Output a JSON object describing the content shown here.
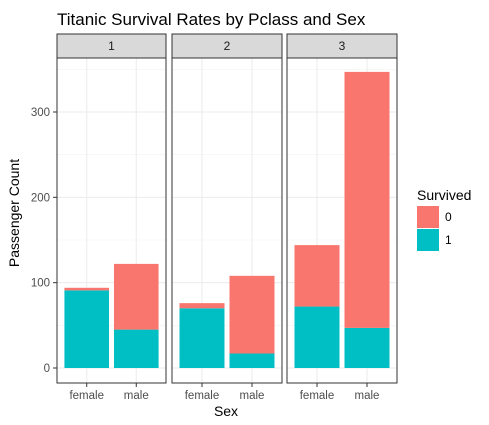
{
  "chart_data": {
    "type": "bar",
    "stacked": true,
    "title": "Titanic Survival Rates by Pclass and Sex",
    "xlabel": "Sex",
    "ylabel": "Passenger Count",
    "ylim": [
      0,
      360
    ],
    "yticks": [
      0,
      100,
      200,
      300
    ],
    "grid": true,
    "legend": {
      "title": "Survived",
      "position": "right",
      "entries": [
        "0",
        "1"
      ]
    },
    "colors": {
      "0": "#f8766d",
      "1": "#00bfc4"
    },
    "facets": [
      "1",
      "2",
      "3"
    ],
    "categories": [
      "female",
      "male"
    ],
    "series": [
      {
        "name": "0",
        "values": {
          "1": [
            3,
            77
          ],
          "2": [
            6,
            91
          ],
          "3": [
            72,
            300
          ]
        }
      },
      {
        "name": "1",
        "values": {
          "1": [
            91,
            45
          ],
          "2": [
            70,
            17
          ],
          "3": [
            72,
            47
          ]
        }
      }
    ]
  }
}
